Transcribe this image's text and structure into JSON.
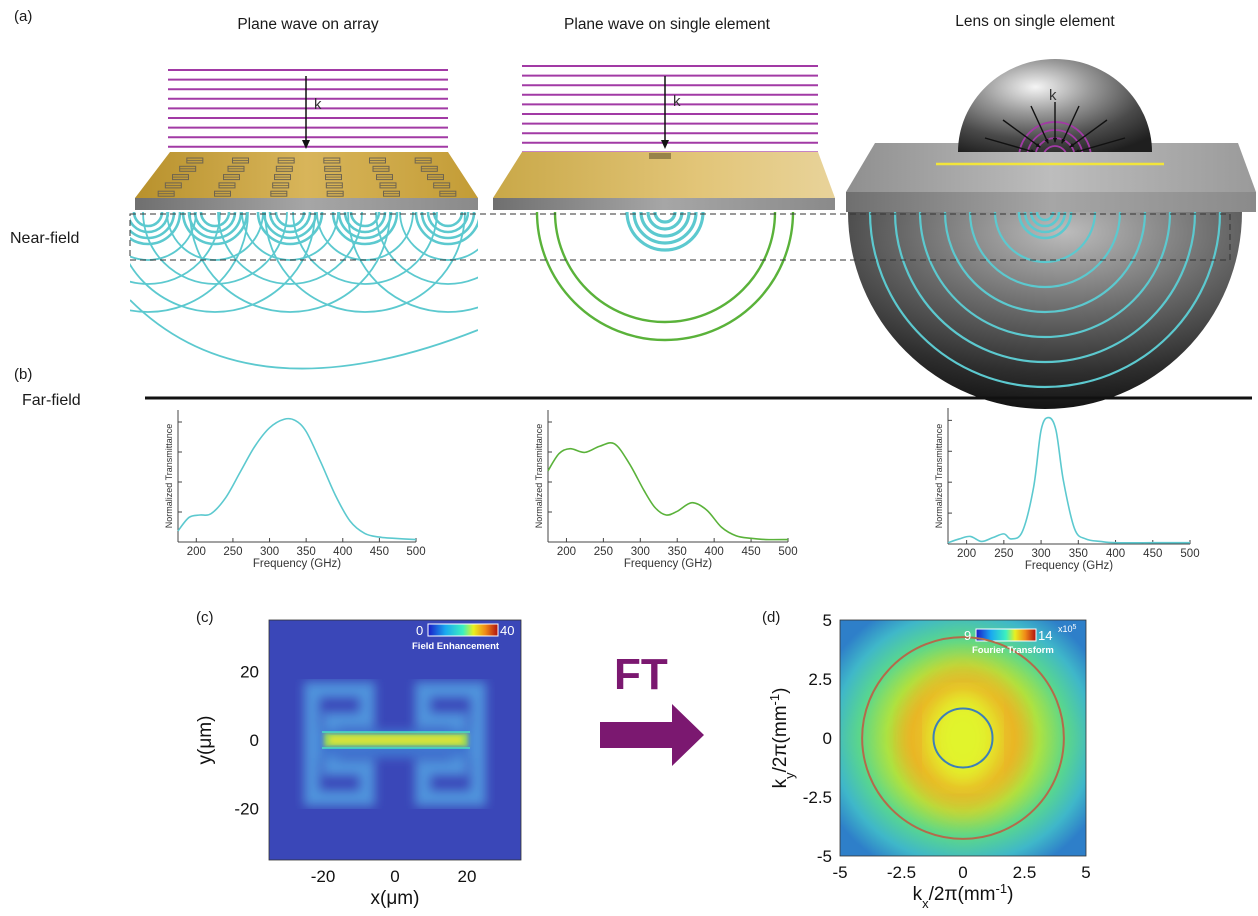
{
  "panel_labels": {
    "a": "(a)",
    "b": "(b)",
    "c": "(c)",
    "d": "(d)"
  },
  "titles": {
    "array": "Plane wave on array",
    "single": "Plane wave on single element",
    "lens": "Lens on single element"
  },
  "k_label": "k",
  "near_field": "Near-field",
  "far_field": "Far-field",
  "ft_label": "FT",
  "colors": {
    "wavefront": "#a23aa5",
    "cyan": "#5cc9cf",
    "green": "#5ab23a",
    "gold": "#c9a540",
    "ft_arrow": "#7b1870",
    "yellow_line": "#f2e53a"
  },
  "chart_data": [
    {
      "type": "line",
      "ylabel": "Normalized Transmittance",
      "xlabel": "Frequency (GHz)",
      "xlim": [
        175,
        500
      ],
      "xticks": [
        "200",
        "250",
        "300",
        "350",
        "400",
        "450",
        "500"
      ],
      "color": "#5cc9cf",
      "x": [
        175,
        190,
        205,
        220,
        240,
        260,
        280,
        300,
        320,
        335,
        350,
        370,
        390,
        410,
        430,
        450,
        470,
        500
      ],
      "y": [
        0.09,
        0.2,
        0.22,
        0.23,
        0.36,
        0.57,
        0.78,
        0.93,
        1.0,
        0.99,
        0.9,
        0.65,
        0.38,
        0.17,
        0.07,
        0.04,
        0.03,
        0.02
      ]
    },
    {
      "type": "line",
      "ylabel": "Normalized Transmittance",
      "xlabel": "Frequency (GHz)",
      "xlim": [
        175,
        500
      ],
      "xticks": [
        "200",
        "250",
        "300",
        "350",
        "400",
        "450",
        "500"
      ],
      "color": "#5ab23a",
      "x": [
        175,
        190,
        205,
        225,
        245,
        265,
        285,
        305,
        320,
        335,
        350,
        370,
        390,
        410,
        430,
        450,
        470,
        500
      ],
      "y": [
        0.58,
        0.72,
        0.76,
        0.73,
        0.78,
        0.8,
        0.64,
        0.42,
        0.28,
        0.22,
        0.25,
        0.32,
        0.26,
        0.12,
        0.05,
        0.03,
        0.02,
        0.02
      ]
    },
    {
      "type": "line",
      "ylabel": "Normalized Transmittance",
      "xlabel": "Frequency (GHz)",
      "xlim": [
        175,
        500
      ],
      "xticks": [
        "200",
        "250",
        "300",
        "350",
        "400",
        "450",
        "500"
      ],
      "color": "#5cc9cf",
      "x": [
        175,
        190,
        205,
        220,
        235,
        250,
        260,
        275,
        290,
        300,
        310,
        320,
        330,
        345,
        360,
        380,
        400,
        450,
        500
      ],
      "y": [
        0.01,
        0.04,
        0.06,
        0.02,
        0.05,
        0.08,
        0.04,
        0.1,
        0.45,
        0.9,
        1.0,
        0.9,
        0.5,
        0.12,
        0.04,
        0.02,
        0.01,
        0.01,
        0.01
      ]
    },
    {
      "type": "heatmap",
      "title": "",
      "xlabel": "x(μm)",
      "ylabel": "y(μm)",
      "xlim": [
        -35,
        35
      ],
      "ylim": [
        -35,
        35
      ],
      "xticks": [
        "-20",
        "0",
        "20"
      ],
      "yticks": [
        "20",
        "0",
        "-20"
      ],
      "colorbar": {
        "label": "Field Enhancement",
        "min": "0",
        "max": "40"
      }
    },
    {
      "type": "heatmap",
      "xlabel_main": "k",
      "xlabel_sub": "x",
      "xlabel_rest": "/2π(mm",
      "ylabel_main": "k",
      "ylabel_sub": "y",
      "ylabel_rest": "/2π(mm",
      "unit_exp": "-1",
      "xlim": [
        -5,
        5
      ],
      "ylim": [
        -5,
        5
      ],
      "xticks": [
        "-5",
        "-2.5",
        "0",
        "2.5",
        "5"
      ],
      "yticks": [
        "5",
        "2.5",
        "0",
        "-2.5",
        "-5"
      ],
      "colorbar": {
        "label": "Fourier Transform",
        "min": "9",
        "max": "14",
        "exponent": "x10",
        "exp_power": "5"
      },
      "circles": [
        {
          "radius": 1.2,
          "color": "#3d7fb8"
        },
        {
          "radius": 4.1,
          "color": "#b46a4a"
        }
      ]
    }
  ]
}
